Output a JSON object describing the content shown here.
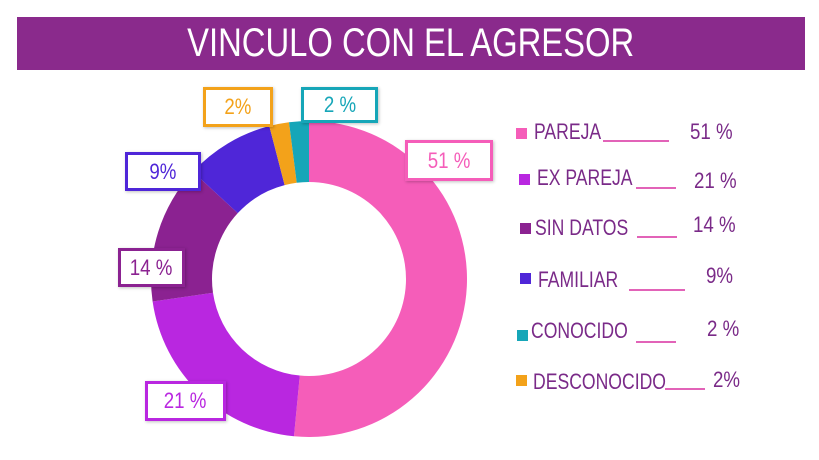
{
  "chart_data": {
    "type": "pie",
    "donut": true,
    "title": "VINCULO CON EL AGRESOR",
    "legend_position": "right",
    "categories": [
      "PAREJA",
      "EX PAREJA",
      "SIN DATOS",
      "FAMILIAR",
      "DESCONOCIDO",
      "CONOCIDO"
    ],
    "values": [
      51,
      21,
      14,
      9,
      2,
      2
    ],
    "colors": [
      "#F55DB9",
      "#B927E0",
      "#8B2291",
      "#4F26D8",
      "#F3A21A",
      "#16A6B8"
    ],
    "data_labels": [
      "51 %",
      "21 %",
      "14 %",
      "9%",
      "2%",
      "2 %"
    ]
  },
  "legend": [
    {
      "label": "PAREJA",
      "value": "51 %",
      "color": "#F55DB9"
    },
    {
      "label": "EX PAREJA",
      "value": "21 %",
      "color": "#B927E0"
    },
    {
      "label": "SIN DATOS",
      "value": "14 %",
      "color": "#8B2291"
    },
    {
      "label": "FAMILIAR",
      "value": "9%",
      "color": "#4F26D8"
    },
    {
      "label": "CONOCIDO",
      "value": "2 %",
      "color": "#16A6B8"
    },
    {
      "label": "DESCONOCIDO",
      "value": "2%",
      "color": "#F3A21A"
    }
  ]
}
